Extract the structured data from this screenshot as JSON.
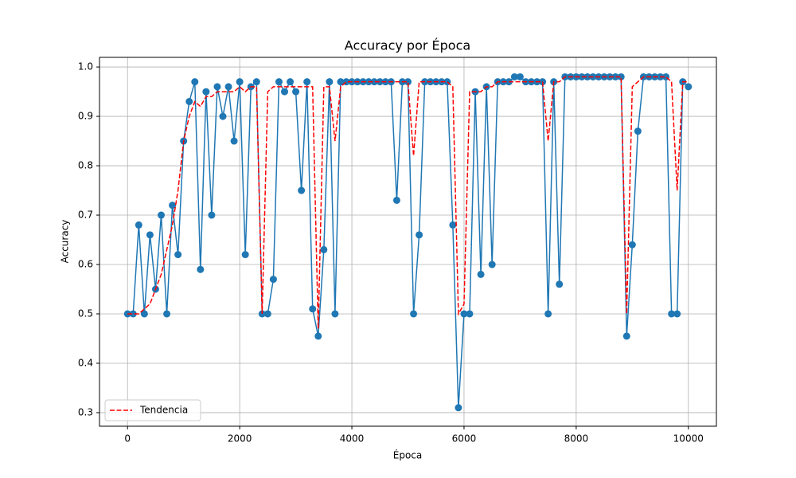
{
  "chart_data": {
    "type": "line",
    "title": "Accuracy por Época",
    "xlabel": "Época",
    "ylabel": "Accuracy",
    "x": [
      0,
      100,
      200,
      300,
      400,
      500,
      600,
      700,
      800,
      900,
      1000,
      1100,
      1200,
      1300,
      1400,
      1500,
      1600,
      1700,
      1800,
      1900,
      2000,
      2100,
      2200,
      2300,
      2400,
      2500,
      2600,
      2700,
      2800,
      2900,
      3000,
      3100,
      3200,
      3300,
      3400,
      3500,
      3600,
      3700,
      3800,
      3900,
      4000,
      4100,
      4200,
      4300,
      4400,
      4500,
      4600,
      4700,
      4800,
      4900,
      5000,
      5100,
      5200,
      5300,
      5400,
      5500,
      5600,
      5700,
      5800,
      5900,
      6000,
      6100,
      6200,
      6300,
      6400,
      6500,
      6600,
      6700,
      6800,
      6900,
      7000,
      7100,
      7200,
      7300,
      7400,
      7500,
      7600,
      7700,
      7800,
      7900,
      8000,
      8100,
      8200,
      8300,
      8400,
      8500,
      8600,
      8700,
      8800,
      8900,
      9000,
      9100,
      9200,
      9300,
      9400,
      9500,
      9600,
      9700,
      9800,
      9900,
      10000
    ],
    "series": [
      {
        "color": "#1f77b4",
        "marker": "o",
        "linestyle": "solid",
        "values": [
          0.5,
          0.5,
          0.68,
          0.5,
          0.66,
          0.55,
          0.7,
          0.5,
          0.72,
          0.62,
          0.85,
          0.93,
          0.97,
          0.59,
          0.95,
          0.7,
          0.96,
          0.9,
          0.96,
          0.85,
          0.97,
          0.62,
          0.96,
          0.97,
          0.5,
          0.5,
          0.57,
          0.97,
          0.95,
          0.97,
          0.95,
          0.75,
          0.97,
          0.51,
          0.455,
          0.63,
          0.97,
          0.5,
          0.97,
          0.97,
          0.97,
          0.97,
          0.97,
          0.97,
          0.97,
          0.97,
          0.97,
          0.97,
          0.73,
          0.97,
          0.97,
          0.5,
          0.66,
          0.97,
          0.97,
          0.97,
          0.97,
          0.97,
          0.68,
          0.31,
          0.5,
          0.5,
          0.95,
          0.58,
          0.96,
          0.6,
          0.97,
          0.97,
          0.97,
          0.98,
          0.98,
          0.97,
          0.97,
          0.97,
          0.97,
          0.5,
          0.97,
          0.56,
          0.98,
          0.98,
          0.98,
          0.98,
          0.98,
          0.98,
          0.98,
          0.98,
          0.98,
          0.98,
          0.98,
          0.455,
          0.64,
          0.87,
          0.98,
          0.98,
          0.98,
          0.98,
          0.98,
          0.5,
          0.5,
          0.97,
          0.96
        ]
      },
      {
        "name": "Tendencia",
        "color": "#ff0000",
        "linestyle": "dashed",
        "values": [
          0.5,
          0.5,
          0.5,
          0.51,
          0.52,
          0.55,
          0.58,
          0.63,
          0.68,
          0.75,
          0.85,
          0.9,
          0.93,
          0.92,
          0.94,
          0.94,
          0.95,
          0.95,
          0.95,
          0.95,
          0.96,
          0.95,
          0.96,
          0.96,
          0.5,
          0.95,
          0.96,
          0.96,
          0.96,
          0.96,
          0.96,
          0.96,
          0.96,
          0.96,
          0.47,
          0.96,
          0.96,
          0.85,
          0.96,
          0.97,
          0.97,
          0.97,
          0.97,
          0.97,
          0.97,
          0.97,
          0.97,
          0.97,
          0.97,
          0.97,
          0.97,
          0.82,
          0.97,
          0.97,
          0.97,
          0.97,
          0.97,
          0.97,
          0.96,
          0.5,
          0.52,
          0.95,
          0.95,
          0.95,
          0.96,
          0.96,
          0.97,
          0.97,
          0.97,
          0.97,
          0.97,
          0.97,
          0.97,
          0.97,
          0.97,
          0.85,
          0.97,
          0.97,
          0.98,
          0.98,
          0.98,
          0.98,
          0.98,
          0.98,
          0.98,
          0.98,
          0.98,
          0.98,
          0.98,
          0.5,
          0.96,
          0.97,
          0.98,
          0.98,
          0.98,
          0.98,
          0.98,
          0.97,
          0.75,
          0.97,
          0.97
        ]
      }
    ],
    "xlim": [
      -500,
      10500
    ],
    "ylim": [
      0.2725,
      1.0195
    ],
    "xticks": [
      0,
      2000,
      4000,
      6000,
      8000,
      10000
    ],
    "yticks": [
      0.3,
      0.4,
      0.5,
      0.6,
      0.7,
      0.8,
      0.9,
      {
        "value": 1,
        "label": "1.0"
      }
    ],
    "grid": true,
    "legend": "lower left"
  }
}
